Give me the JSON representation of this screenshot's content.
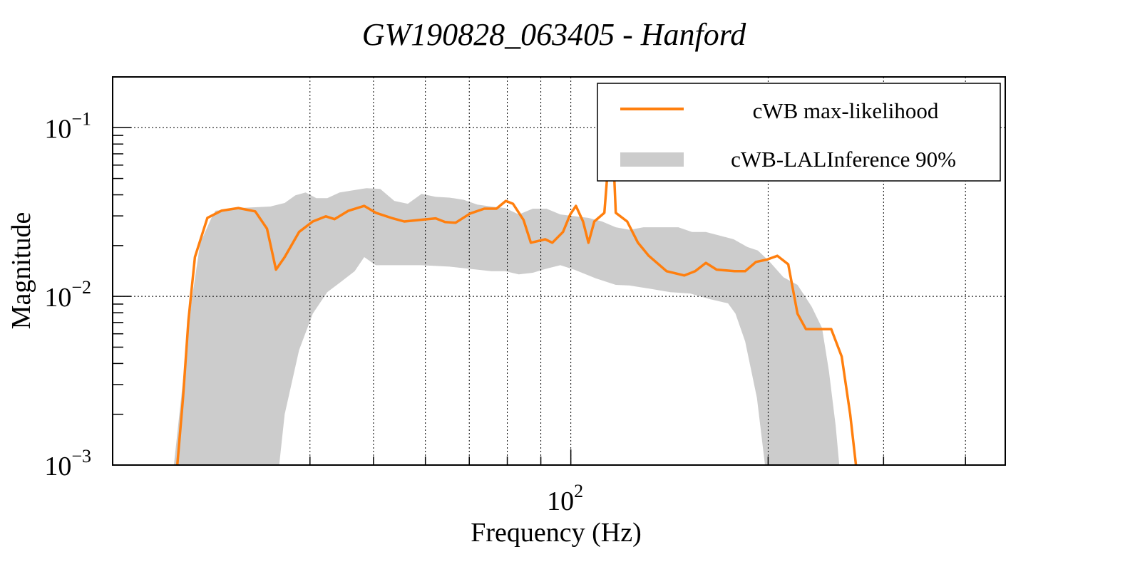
{
  "chart_data": {
    "type": "line",
    "title": "GW190828_063405 - Hanford",
    "xlabel": "Frequency (Hz)",
    "ylabel": "Magnitude",
    "xscale": "log",
    "yscale": "log",
    "xlim": [
      20,
      460
    ],
    "ylim": [
      0.001,
      0.2
    ],
    "grid": true,
    "legend_position": "top-right",
    "x_ticks": [
      {
        "value": 100,
        "label_base": "10",
        "label_exp": "2"
      }
    ],
    "y_ticks": [
      {
        "value": 0.1,
        "label_base": "10",
        "label_exp": "−1"
      },
      {
        "value": 0.01,
        "label_base": "10",
        "label_exp": "−2"
      },
      {
        "value": 0.001,
        "label_base": "10",
        "label_exp": "−3"
      }
    ],
    "series": [
      {
        "name": "cWB max-likelihood",
        "kind": "line",
        "color": "#ff7f0e",
        "points": [
          [
            25.1,
            0.001
          ],
          [
            25.6,
            0.00247
          ],
          [
            26.1,
            0.0072
          ],
          [
            26.7,
            0.0171
          ],
          [
            27.9,
            0.0292
          ],
          [
            29.3,
            0.0322
          ],
          [
            31.1,
            0.0334
          ],
          [
            33.0,
            0.0319
          ],
          [
            34.4,
            0.0252
          ],
          [
            35.5,
            0.0144
          ],
          [
            36.6,
            0.0171
          ],
          [
            38.5,
            0.0241
          ],
          [
            40.4,
            0.0278
          ],
          [
            42.3,
            0.0298
          ],
          [
            43.6,
            0.0287
          ],
          [
            45.8,
            0.0322
          ],
          [
            48.4,
            0.0344
          ],
          [
            50.4,
            0.0313
          ],
          [
            53.2,
            0.0292
          ],
          [
            55.7,
            0.0278
          ],
          [
            58.9,
            0.0284
          ],
          [
            62.2,
            0.029
          ],
          [
            64.3,
            0.0276
          ],
          [
            66.7,
            0.0273
          ],
          [
            70.2,
            0.031
          ],
          [
            73.8,
            0.0331
          ],
          [
            77.0,
            0.0331
          ],
          [
            79.6,
            0.0368
          ],
          [
            81.6,
            0.0354
          ],
          [
            84.7,
            0.0284
          ],
          [
            86.9,
            0.0208
          ],
          [
            91.4,
            0.0218
          ],
          [
            93.7,
            0.0208
          ],
          [
            97.3,
            0.0241
          ],
          [
            99.8,
            0.0306
          ],
          [
            101.8,
            0.0344
          ],
          [
            104.4,
            0.0278
          ],
          [
            106.4,
            0.0208
          ],
          [
            108.6,
            0.0278
          ],
          [
            112.5,
            0.0313
          ],
          [
            114.0,
            0.0604
          ],
          [
            115.4,
            0.12
          ],
          [
            117.1,
            0.0313
          ],
          [
            121.9,
            0.0278
          ],
          [
            126.6,
            0.0208
          ],
          [
            131.5,
            0.0174
          ],
          [
            140.0,
            0.0141
          ],
          [
            149.0,
            0.0133
          ],
          [
            154.8,
            0.0141
          ],
          [
            160.7,
            0.0158
          ],
          [
            166.9,
            0.0144
          ],
          [
            177.7,
            0.0141
          ],
          [
            184.5,
            0.0141
          ],
          [
            191.6,
            0.016
          ],
          [
            199.0,
            0.0165
          ],
          [
            206.6,
            0.0174
          ],
          [
            214.6,
            0.0155
          ],
          [
            221.7,
            0.0079
          ],
          [
            228.4,
            0.0064
          ],
          [
            249.6,
            0.0064
          ],
          [
            259.0,
            0.0044
          ],
          [
            266.8,
            0.002
          ],
          [
            272.3,
            0.001
          ]
        ]
      },
      {
        "name": "cWB-LALInference 90%",
        "kind": "band",
        "color": "#cccccc",
        "upper": [
          [
            24.8,
            0.001
          ],
          [
            25.7,
            0.0036
          ],
          [
            26.4,
            0.0095
          ],
          [
            27.2,
            0.0207
          ],
          [
            28.3,
            0.0292
          ],
          [
            28.7,
            0.0322
          ],
          [
            31.1,
            0.0334
          ],
          [
            34.8,
            0.0341
          ],
          [
            36.6,
            0.0358
          ],
          [
            38.0,
            0.0397
          ],
          [
            39.4,
            0.0413
          ],
          [
            40.9,
            0.0382
          ],
          [
            42.5,
            0.0382
          ],
          [
            44.4,
            0.0413
          ],
          [
            46.6,
            0.0426
          ],
          [
            48.8,
            0.0438
          ],
          [
            51.2,
            0.0434
          ],
          [
            53.8,
            0.0368
          ],
          [
            56.4,
            0.0354
          ],
          [
            59.2,
            0.0405
          ],
          [
            62.2,
            0.0389
          ],
          [
            65.3,
            0.0385
          ],
          [
            68.6,
            0.0374
          ],
          [
            72.0,
            0.035
          ],
          [
            75.6,
            0.0341
          ],
          [
            79.4,
            0.0334
          ],
          [
            83.3,
            0.0306
          ],
          [
            87.5,
            0.0331
          ],
          [
            91.8,
            0.0331
          ],
          [
            96.4,
            0.0306
          ],
          [
            101.2,
            0.0299
          ],
          [
            106.3,
            0.0292
          ],
          [
            111.6,
            0.0278
          ],
          [
            117.1,
            0.0257
          ],
          [
            123.0,
            0.0248
          ],
          [
            129.1,
            0.0257
          ],
          [
            137.2,
            0.0257
          ],
          [
            145.9,
            0.0257
          ],
          [
            153.1,
            0.0241
          ],
          [
            160.7,
            0.0241
          ],
          [
            168.8,
            0.0229
          ],
          [
            177.2,
            0.0218
          ],
          [
            186.0,
            0.0196
          ],
          [
            192.9,
            0.0187
          ],
          [
            200.6,
            0.0162
          ],
          [
            211.0,
            0.013
          ],
          [
            221.7,
            0.0117
          ],
          [
            233.0,
            0.0087
          ],
          [
            241.7,
            0.0065
          ],
          [
            247.6,
            0.0036
          ],
          [
            253.6,
            0.0017
          ],
          [
            256.8,
            0.001
          ]
        ],
        "lower": [
          [
            35.9,
            0.001
          ],
          [
            36.6,
            0.002
          ],
          [
            38.5,
            0.0048
          ],
          [
            40.4,
            0.0079
          ],
          [
            42.5,
            0.0106
          ],
          [
            44.6,
            0.0122
          ],
          [
            46.8,
            0.0141
          ],
          [
            48.4,
            0.0171
          ],
          [
            50.4,
            0.0153
          ],
          [
            53.8,
            0.0153
          ],
          [
            59.2,
            0.0153
          ],
          [
            65.3,
            0.015
          ],
          [
            72.0,
            0.0144
          ],
          [
            75.6,
            0.0141
          ],
          [
            79.4,
            0.0141
          ],
          [
            83.3,
            0.0135
          ],
          [
            87.5,
            0.0138
          ],
          [
            91.8,
            0.0146
          ],
          [
            96.4,
            0.0153
          ],
          [
            101.2,
            0.0144
          ],
          [
            109.1,
            0.0128
          ],
          [
            117.1,
            0.0117
          ],
          [
            122.9,
            0.0116
          ],
          [
            132.0,
            0.0111
          ],
          [
            141.8,
            0.0106
          ],
          [
            152.1,
            0.0104
          ],
          [
            163.4,
            0.0096
          ],
          [
            173.7,
            0.0091
          ],
          [
            178.3,
            0.0079
          ],
          [
            184.5,
            0.0054
          ],
          [
            192.3,
            0.0025
          ],
          [
            197.8,
            0.001
          ]
        ]
      }
    ]
  },
  "legend": {
    "items": [
      {
        "label": "cWB max-likelihood",
        "color": "#ff7f0e",
        "kind": "line"
      },
      {
        "label": "cWB-LALInference 90%",
        "color": "#cccccc",
        "kind": "band"
      }
    ]
  }
}
